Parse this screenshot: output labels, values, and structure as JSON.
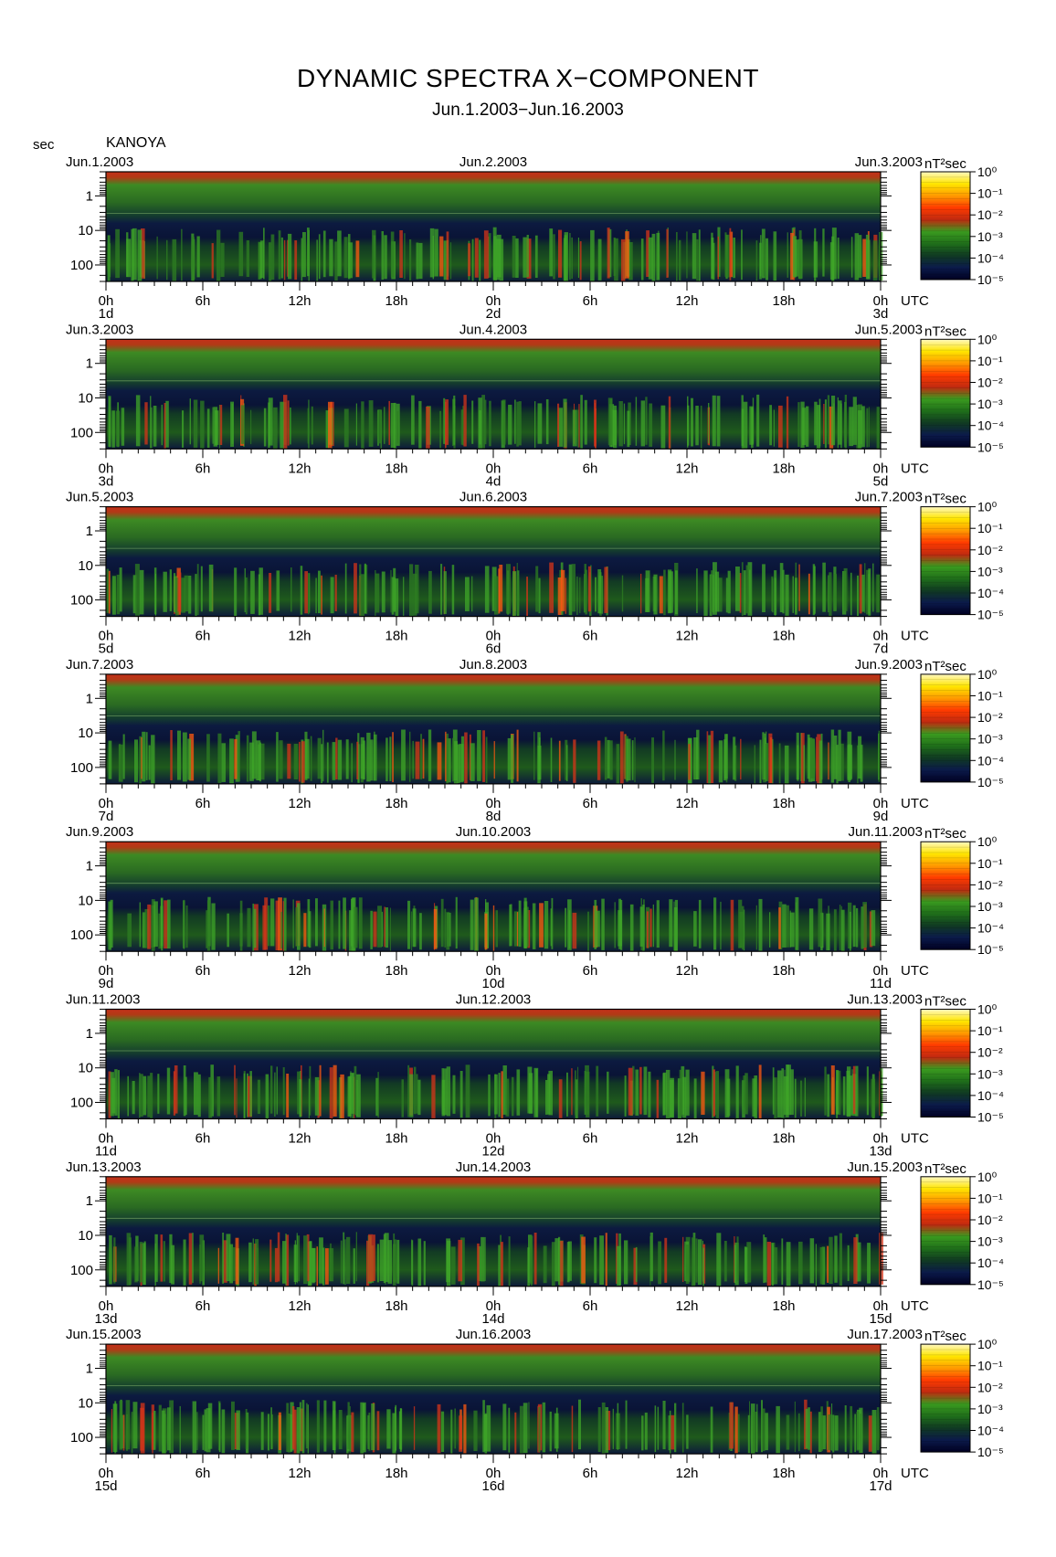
{
  "title": "DYNAMIC SPECTRA X−COMPONENT",
  "subtitle": "Jun.1.2003−Jun.16.2003",
  "y_unit_label": "sec",
  "station": "KANOYA",
  "colorbar_unit": "nT²sec",
  "colorbar_ticks": [
    "10⁰",
    "10⁻¹",
    "10⁻²",
    "10⁻³",
    "10⁻⁴",
    "10⁻⁵"
  ],
  "time_zone_label": "UTC",
  "chart_data": {
    "type": "heatmap",
    "title": "DYNAMIC SPECTRA X−COMPONENT",
    "subtitle": "Jun.1.2003−Jun.16.2003",
    "ylabel": "sec",
    "y_ticks": [
      "1",
      "10",
      "100"
    ],
    "y_scale": "log",
    "y_range_sec": [
      0.2,
      300
    ],
    "x_ticks": [
      "0h",
      "6h",
      "12h",
      "18h",
      "0h",
      "6h",
      "12h",
      "18h",
      "0h"
    ],
    "x_range_hours": [
      0,
      48
    ],
    "colorbar": {
      "unit": "nT²sec",
      "scale": "log",
      "range": [
        1e-05,
        1
      ],
      "colors_low_to_high": [
        "#000022",
        "#0b1a4a",
        "#103a22",
        "#1f6e1a",
        "#3a9a1f",
        "#c02a10",
        "#ff3b00",
        "#ff9a00",
        "#ffe600",
        "#fff8c0"
      ]
    },
    "panels": [
      {
        "start_label": "Jun.1.2003",
        "mid_label": "Jun.2.2003",
        "end_label": "Jun.3.2003",
        "day_labels": [
          "1d",
          "2d",
          "3d"
        ]
      },
      {
        "start_label": "Jun.3.2003",
        "mid_label": "Jun.4.2003",
        "end_label": "Jun.5.2003",
        "day_labels": [
          "3d",
          "4d",
          "5d"
        ]
      },
      {
        "start_label": "Jun.5.2003",
        "mid_label": "Jun.6.2003",
        "end_label": "Jun.7.2003",
        "day_labels": [
          "5d",
          "6d",
          "7d"
        ]
      },
      {
        "start_label": "Jun.7.2003",
        "mid_label": "Jun.8.2003",
        "end_label": "Jun.9.2003",
        "day_labels": [
          "7d",
          "8d",
          "9d"
        ]
      },
      {
        "start_label": "Jun.9.2003",
        "mid_label": "Jun.10.2003",
        "end_label": "Jun.11.2003",
        "day_labels": [
          "9d",
          "10d",
          "11d"
        ]
      },
      {
        "start_label": "Jun.11.2003",
        "mid_label": "Jun.12.2003",
        "end_label": "Jun.13.2003",
        "day_labels": [
          "11d",
          "12d",
          "13d"
        ]
      },
      {
        "start_label": "Jun.13.2003",
        "mid_label": "Jun.14.2003",
        "end_label": "Jun.15.2003",
        "day_labels": [
          "13d",
          "14d",
          "15d"
        ]
      },
      {
        "start_label": "Jun.15.2003",
        "mid_label": "Jun.16.2003",
        "end_label": "Jun.17.2003",
        "day_labels": [
          "15d",
          "16d",
          "17d"
        ]
      }
    ]
  }
}
